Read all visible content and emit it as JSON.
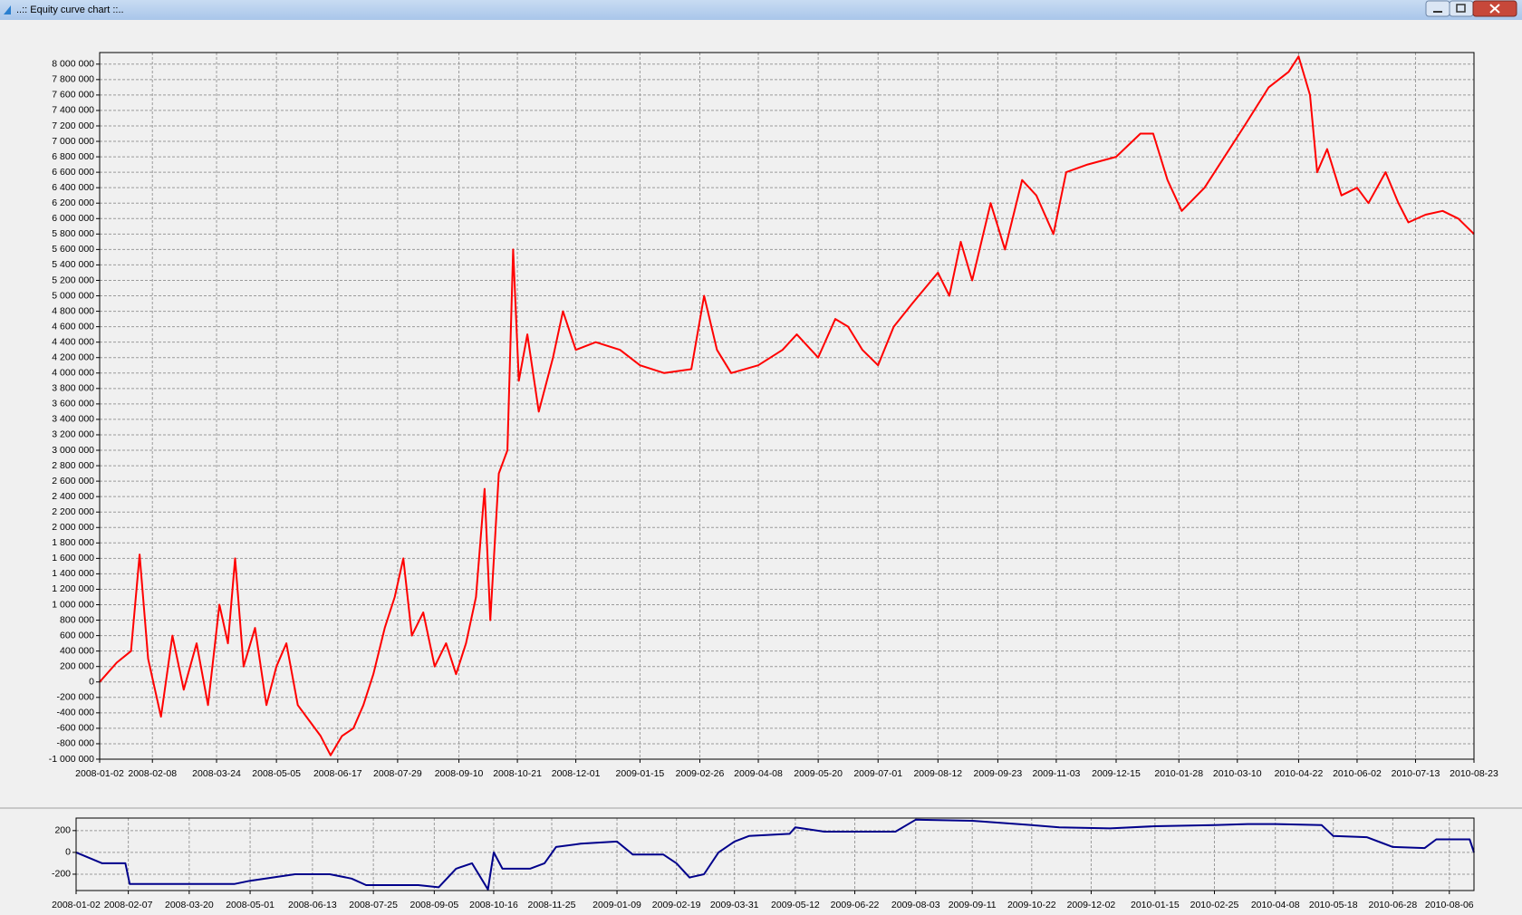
{
  "window": {
    "title": "..:: Equity curve chart ::.."
  },
  "chart_data": [
    {
      "type": "line",
      "color": "#ff0000",
      "grid": true,
      "xlim": [
        "2008-01-02",
        "2010-08-23"
      ],
      "xticks": [
        "2008-01-02",
        "2008-02-08",
        "2008-03-24",
        "2008-05-05",
        "2008-06-17",
        "2008-07-29",
        "2008-09-10",
        "2008-10-21",
        "2008-12-01",
        "2009-01-15",
        "2009-02-26",
        "2009-04-08",
        "2009-05-20",
        "2009-07-01",
        "2009-08-12",
        "2009-09-23",
        "2009-11-03",
        "2009-12-15",
        "2010-01-28",
        "2010-03-10",
        "2010-04-22",
        "2010-06-02",
        "2010-07-13",
        "2010-08-23"
      ],
      "ylim": [
        -1000000,
        8150000
      ],
      "yticks": [
        {
          "value": -1000000,
          "label": "-1 000 000"
        },
        {
          "value": -800000,
          "label": "-800 000"
        },
        {
          "value": -600000,
          "label": "-600 000"
        },
        {
          "value": -400000,
          "label": "-400 000"
        },
        {
          "value": -200000,
          "label": "-200 000"
        },
        0,
        {
          "value": 200000,
          "label": "200 000"
        },
        {
          "value": 400000,
          "label": "400 000"
        },
        {
          "value": 600000,
          "label": "600 000"
        },
        {
          "value": 800000,
          "label": "800 000"
        },
        {
          "value": 1000000,
          "label": "1 000 000"
        },
        {
          "value": 1200000,
          "label": "1 200 000"
        },
        {
          "value": 1400000,
          "label": "1 400 000"
        },
        {
          "value": 1600000,
          "label": "1 600 000"
        },
        {
          "value": 1800000,
          "label": "1 800 000"
        },
        {
          "value": 2000000,
          "label": "2 000 000"
        },
        {
          "value": 2200000,
          "label": "2 200 000"
        },
        {
          "value": 2400000,
          "label": "2 400 000"
        },
        {
          "value": 2600000,
          "label": "2 600 000"
        },
        {
          "value": 2800000,
          "label": "2 800 000"
        },
        {
          "value": 3000000,
          "label": "3 000 000"
        },
        {
          "value": 3200000,
          "label": "3 200 000"
        },
        {
          "value": 3400000,
          "label": "3 400 000"
        },
        {
          "value": 3600000,
          "label": "3 600 000"
        },
        {
          "value": 3800000,
          "label": "3 800 000"
        },
        {
          "value": 4000000,
          "label": "4 000 000"
        },
        {
          "value": 4200000,
          "label": "4 200 000"
        },
        {
          "value": 4400000,
          "label": "4 400 000"
        },
        {
          "value": 4600000,
          "label": "4 600 000"
        },
        {
          "value": 4800000,
          "label": "4 800 000"
        },
        {
          "value": 5000000,
          "label": "5 000 000"
        },
        {
          "value": 5200000,
          "label": "5 200 000"
        },
        {
          "value": 5400000,
          "label": "5 400 000"
        },
        {
          "value": 5600000,
          "label": "5 600 000"
        },
        {
          "value": 5800000,
          "label": "5 800 000"
        },
        {
          "value": 6000000,
          "label": "6 000 000"
        },
        {
          "value": 6200000,
          "label": "6 200 000"
        },
        {
          "value": 6400000,
          "label": "6 400 000"
        },
        {
          "value": 6600000,
          "label": "6 600 000"
        },
        {
          "value": 6800000,
          "label": "6 800 000"
        },
        {
          "value": 7000000,
          "label": "7 000 000"
        },
        {
          "value": 7200000,
          "label": "7 200 000"
        },
        {
          "value": 7400000,
          "label": "7 400 000"
        },
        {
          "value": 7600000,
          "label": "7 600 000"
        },
        {
          "value": 7800000,
          "label": "7 800 000"
        },
        {
          "value": 8000000,
          "label": "8 000 000"
        }
      ],
      "x": [
        "2008-01-02",
        "2008-01-14",
        "2008-01-24",
        "2008-01-30",
        "2008-02-05",
        "2008-02-14",
        "2008-02-22",
        "2008-03-01",
        "2008-03-10",
        "2008-03-18",
        "2008-03-26",
        "2008-04-01",
        "2008-04-06",
        "2008-04-12",
        "2008-04-20",
        "2008-04-28",
        "2008-05-05",
        "2008-05-12",
        "2008-05-20",
        "2008-05-28",
        "2008-06-05",
        "2008-06-12",
        "2008-06-20",
        "2008-06-28",
        "2008-07-05",
        "2008-07-12",
        "2008-07-20",
        "2008-07-27",
        "2008-08-02",
        "2008-08-08",
        "2008-08-16",
        "2008-08-24",
        "2008-09-01",
        "2008-09-08",
        "2008-09-15",
        "2008-09-22",
        "2008-09-28",
        "2008-10-02",
        "2008-10-08",
        "2008-10-14",
        "2008-10-18",
        "2008-10-22",
        "2008-10-28",
        "2008-11-05",
        "2008-11-15",
        "2008-11-22",
        "2008-12-01",
        "2008-12-15",
        "2009-01-01",
        "2009-01-15",
        "2009-02-01",
        "2009-02-20",
        "2009-03-01",
        "2009-03-10",
        "2009-03-20",
        "2009-04-08",
        "2009-04-25",
        "2009-05-05",
        "2009-05-20",
        "2009-06-01",
        "2009-06-10",
        "2009-06-20",
        "2009-07-01",
        "2009-07-12",
        "2009-07-25",
        "2009-08-12",
        "2009-08-20",
        "2009-08-28",
        "2009-09-05",
        "2009-09-18",
        "2009-09-28",
        "2009-10-10",
        "2009-10-20",
        "2009-11-01",
        "2009-11-10",
        "2009-11-25",
        "2009-12-15",
        "2010-01-01",
        "2010-01-10",
        "2010-01-20",
        "2010-01-30",
        "2010-02-15",
        "2010-03-01",
        "2010-03-15",
        "2010-04-01",
        "2010-04-15",
        "2010-04-22",
        "2010-04-30",
        "2010-05-05",
        "2010-05-12",
        "2010-05-22",
        "2010-06-02",
        "2010-06-10",
        "2010-06-22",
        "2010-07-01",
        "2010-07-08",
        "2010-07-20",
        "2010-08-01",
        "2010-08-12",
        "2010-08-23"
      ],
      "values": [
        0,
        250000,
        400000,
        1650000,
        300000,
        -450000,
        600000,
        -100000,
        500000,
        -300000,
        1000000,
        500000,
        1600000,
        200000,
        700000,
        -300000,
        200000,
        500000,
        -300000,
        -500000,
        -700000,
        -950000,
        -700000,
        -600000,
        -300000,
        100000,
        700000,
        1100000,
        1600000,
        600000,
        900000,
        200000,
        500000,
        100000,
        500000,
        1100000,
        2500000,
        800000,
        2700000,
        3000000,
        5600000,
        3900000,
        4500000,
        3500000,
        4200000,
        4800000,
        4300000,
        4400000,
        4300000,
        4100000,
        4000000,
        4050000,
        5000000,
        4300000,
        4000000,
        4100000,
        4300000,
        4500000,
        4200000,
        4700000,
        4600000,
        4300000,
        4100000,
        4600000,
        4900000,
        5300000,
        5000000,
        5700000,
        5200000,
        6200000,
        5600000,
        6500000,
        6300000,
        5800000,
        6600000,
        6700000,
        6800000,
        7100000,
        7100000,
        6500000,
        6100000,
        6400000,
        6800000,
        7200000,
        7700000,
        7900000,
        8100000,
        7600000,
        6600000,
        6900000,
        6300000,
        6400000,
        6200000,
        6600000,
        6200000,
        5950000,
        6050000,
        6100000,
        6000000,
        5800000
      ]
    },
    {
      "type": "line",
      "color": "#00008b",
      "grid": true,
      "xlim": [
        "2008-01-02",
        "2010-08-23"
      ],
      "xticks": [
        "2008-01-02",
        "2008-02-07",
        "2008-03-20",
        "2008-05-01",
        "2008-06-13",
        "2008-07-25",
        "2008-09-05",
        "2008-10-16",
        "2008-11-25",
        "2009-01-09",
        "2009-02-19",
        "2009-03-31",
        "2009-05-12",
        "2009-06-22",
        "2009-08-03",
        "2009-09-11",
        "2009-10-22",
        "2009-12-02",
        "2010-01-15",
        "2010-02-25",
        "2010-04-08",
        "2010-05-18",
        "2010-06-28",
        "2010-08-06"
      ],
      "ylim": [
        -350,
        315
      ],
      "yticks": [
        -200,
        0,
        200
      ],
      "x": [
        "2008-01-02",
        "2008-01-20",
        "2008-02-05",
        "2008-02-08",
        "2008-04-20",
        "2008-05-01",
        "2008-06-01",
        "2008-06-25",
        "2008-07-10",
        "2008-07-20",
        "2008-08-25",
        "2008-09-08",
        "2008-09-20",
        "2008-10-01",
        "2008-10-12",
        "2008-10-16",
        "2008-10-22",
        "2008-11-10",
        "2008-11-20",
        "2008-11-28",
        "2008-12-15",
        "2009-01-09",
        "2009-01-20",
        "2009-02-10",
        "2009-02-19",
        "2009-02-28",
        "2009-03-10",
        "2009-03-20",
        "2009-03-31",
        "2009-04-10",
        "2009-05-08",
        "2009-05-12",
        "2009-06-01",
        "2009-07-20",
        "2009-08-03",
        "2009-09-11",
        "2009-10-22",
        "2009-11-10",
        "2009-12-15",
        "2010-01-15",
        "2010-02-25",
        "2010-03-20",
        "2010-04-08",
        "2010-05-10",
        "2010-05-18",
        "2010-06-10",
        "2010-06-28",
        "2010-07-20",
        "2010-07-28",
        "2010-08-20",
        "2010-08-23"
      ],
      "values": [
        0,
        -100,
        -100,
        -290,
        -290,
        -260,
        -200,
        -200,
        -240,
        -300,
        -300,
        -320,
        -150,
        -100,
        -340,
        0,
        -150,
        -150,
        -100,
        50,
        80,
        100,
        -20,
        -20,
        -100,
        -230,
        -200,
        0,
        100,
        150,
        170,
        230,
        190,
        190,
        300,
        290,
        250,
        230,
        220,
        240,
        250,
        260,
        260,
        250,
        150,
        140,
        50,
        40,
        120,
        120,
        0
      ]
    }
  ]
}
